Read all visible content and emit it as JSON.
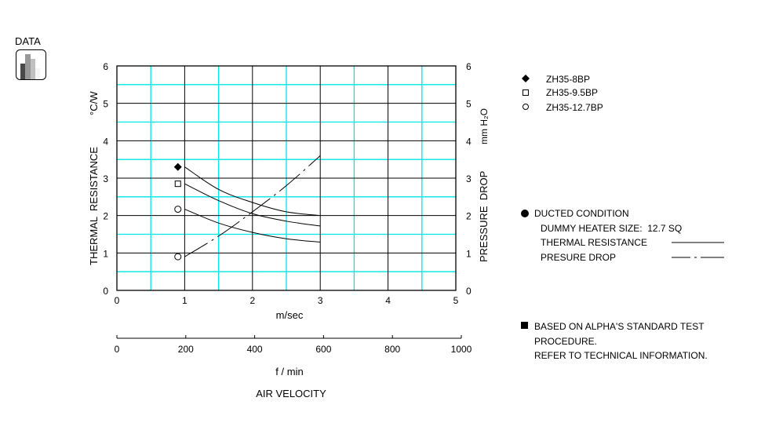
{
  "header": {
    "data_label": "DATA",
    "icon": "bar-chart-icon"
  },
  "chart_data": {
    "type": "line",
    "xlabel": "m/sec",
    "xlabel2": "f / min",
    "xlabel_title": "AIR VELOCITY",
    "ylabel_left": "THERMAL  RESISTANCE",
    "ylabel_left_unit": "°C/W",
    "ylabel_right": "PRESSURE  DROP",
    "ylabel_right_unit": "mm H₂O",
    "xlim": [
      0,
      5
    ],
    "x2lim": [
      0,
      1000
    ],
    "ylim": [
      0,
      6
    ],
    "xticks": [
      "0",
      "1",
      "2",
      "3",
      "4",
      "5"
    ],
    "x2ticks": [
      "0",
      "200",
      "400",
      "600",
      "800",
      "1000"
    ],
    "yticks": [
      "0",
      "1",
      "2",
      "3",
      "4",
      "5",
      "6"
    ],
    "grid": true,
    "grid_colors": {
      "major": "#000000",
      "minor": "#00e5e5"
    },
    "series": [
      {
        "name": "ZH35-8BP",
        "marker": "filled-diamond",
        "style": "solid",
        "x": [
          1,
          1.5,
          2,
          2.5,
          3
        ],
        "y": [
          3.3,
          2.7,
          2.35,
          2.1,
          2.0
        ]
      },
      {
        "name": "ZH35-9.5BP",
        "marker": "open-square",
        "style": "solid",
        "x": [
          1,
          1.5,
          2,
          2.5,
          3
        ],
        "y": [
          2.85,
          2.4,
          2.05,
          1.85,
          1.72
        ]
      },
      {
        "name": "ZH35-12.7BP",
        "marker": "open-circle",
        "style": "solid",
        "x": [
          1,
          1.5,
          2,
          2.5,
          3
        ],
        "y": [
          2.17,
          1.8,
          1.55,
          1.38,
          1.29
        ]
      },
      {
        "name": "PRESURE DROP",
        "marker": "open-circle",
        "style": "dash-dot",
        "x": [
          1,
          1.5,
          2,
          2.5,
          3
        ],
        "y": [
          0.9,
          1.45,
          2.1,
          2.8,
          3.6
        ]
      }
    ],
    "legend_placement": "right"
  },
  "notes": {
    "ducted": "DUCTED CONDITION",
    "heater": "DUMMY HEATER SIZE:  12.7 SQ",
    "thermal": "THERMAL RESISTANCE",
    "pressure": "PRESURE DROP",
    "based1": "BASED ON ALPHA'S STANDARD TEST",
    "based2": "PROCEDURE.",
    "based3": "REFER TO TECHNICAL INFORMATION."
  }
}
